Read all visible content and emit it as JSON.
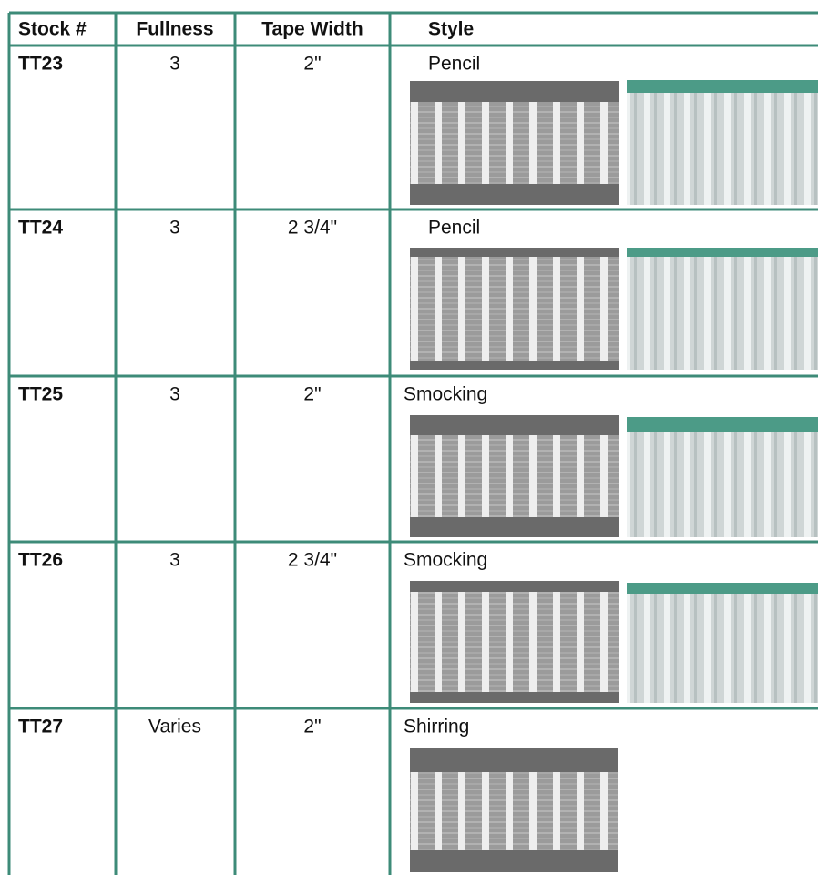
{
  "table": {
    "columns": [
      "Stock #",
      "Fullness",
      "Tape Width",
      "Style"
    ],
    "rows": [
      [
        "TT23",
        "3",
        "2\"",
        "Pencil"
      ],
      [
        "TT24",
        "3",
        "2 3/4\"",
        "Pencil"
      ],
      [
        "TT25",
        "3",
        "2\"",
        "Smocking"
      ],
      [
        "TT26",
        "3",
        "2 3/4\"",
        "Smocking"
      ],
      [
        "TT27",
        "Varies",
        "2\"",
        "Shirring"
      ]
    ]
  }
}
